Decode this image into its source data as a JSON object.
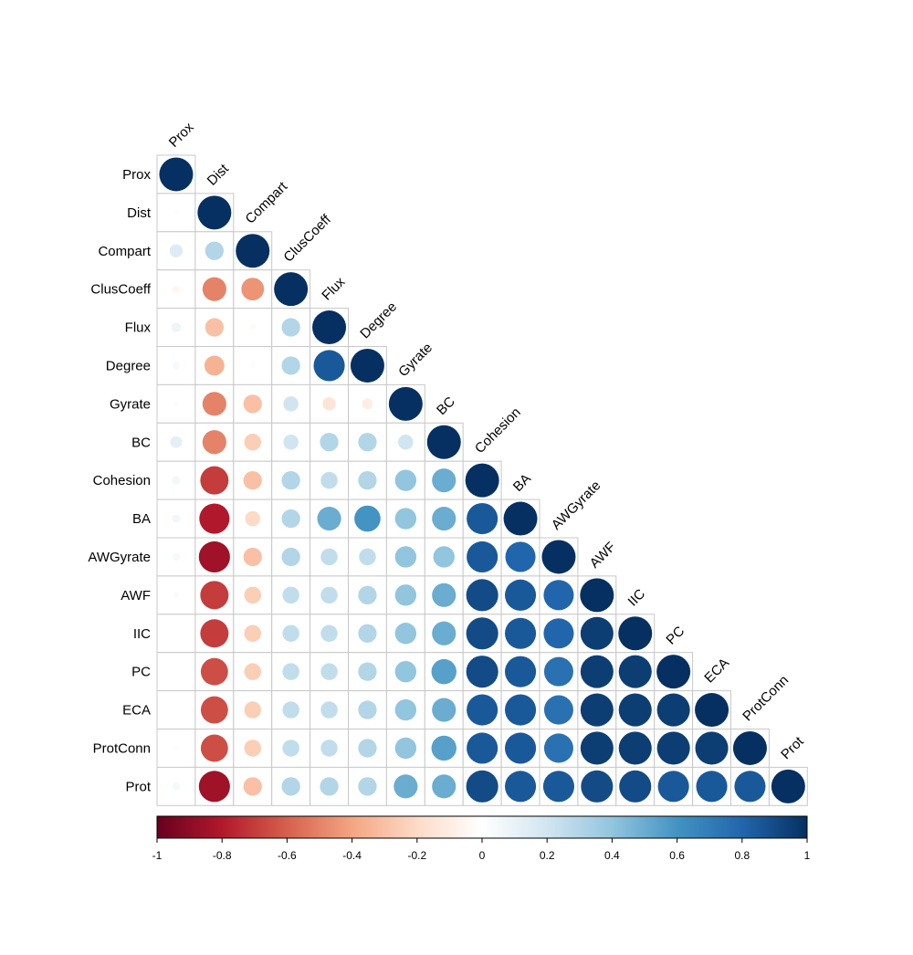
{
  "chart_data": {
    "type": "heatmap",
    "subtype": "correlation-circles-lower-triangle",
    "variables": [
      "Prox",
      "Dist",
      "Compart",
      "ClusCoeff",
      "Flux",
      "Degree",
      "Gyrate",
      "BC",
      "Cohesion",
      "BA",
      "AWGyrate",
      "AWF",
      "IIC",
      "PC",
      "ECA",
      "ProtConn",
      "Prot"
    ],
    "matrix": [
      [
        1.0
      ],
      [
        0.02,
        1.0
      ],
      [
        0.15,
        0.3,
        1.0
      ],
      [
        -0.05,
        -0.5,
        -0.45,
        1.0
      ],
      [
        0.08,
        -0.3,
        -0.03,
        0.3,
        1.0
      ],
      [
        0.05,
        -0.35,
        -0.02,
        0.3,
        0.85,
        1.0
      ],
      [
        0.02,
        -0.5,
        -0.3,
        0.2,
        -0.15,
        -0.1,
        1.0
      ],
      [
        0.12,
        -0.5,
        -0.25,
        0.2,
        0.3,
        0.3,
        0.2,
        1.0
      ],
      [
        0.06,
        -0.7,
        -0.3,
        0.3,
        0.25,
        0.3,
        0.4,
        0.5,
        1.0
      ],
      [
        0.06,
        -0.8,
        -0.2,
        0.3,
        0.5,
        0.6,
        0.4,
        0.5,
        0.85,
        1.0
      ],
      [
        0.05,
        -0.85,
        -0.3,
        0.3,
        0.25,
        0.25,
        0.4,
        0.4,
        0.85,
        0.8,
        1.0
      ],
      [
        0.03,
        -0.7,
        -0.25,
        0.25,
        0.25,
        0.3,
        0.4,
        0.5,
        0.9,
        0.85,
        0.8,
        1.0
      ],
      [
        0.0,
        -0.7,
        -0.25,
        0.25,
        0.25,
        0.3,
        0.4,
        0.5,
        0.9,
        0.85,
        0.8,
        0.95,
        1.0
      ],
      [
        0.0,
        -0.65,
        -0.25,
        0.25,
        0.25,
        0.3,
        0.4,
        0.55,
        0.9,
        0.85,
        0.75,
        0.95,
        0.95,
        1.0
      ],
      [
        0.0,
        -0.65,
        -0.25,
        0.25,
        0.25,
        0.3,
        0.4,
        0.5,
        0.85,
        0.85,
        0.75,
        0.95,
        0.95,
        0.95,
        1.0
      ],
      [
        0.02,
        -0.65,
        -0.25,
        0.25,
        0.25,
        0.3,
        0.4,
        0.55,
        0.85,
        0.85,
        0.75,
        0.95,
        0.95,
        0.95,
        0.95,
        1.0
      ],
      [
        0.05,
        -0.85,
        -0.3,
        0.3,
        0.3,
        0.3,
        0.5,
        0.5,
        0.9,
        0.85,
        0.85,
        0.9,
        0.9,
        0.85,
        0.85,
        0.85,
        1.0
      ]
    ],
    "colorbar": {
      "range": [
        -1,
        1
      ],
      "ticks": [
        "-1",
        "-0.8",
        "-0.6",
        "-0.4",
        "-0.2",
        "0",
        "0.2",
        "0.4",
        "0.6",
        "0.8",
        "1"
      ]
    },
    "colors": [
      "#67001F",
      "#B2182B",
      "#D6604D",
      "#F4A582",
      "#FDDBC7",
      "#FFFFFF",
      "#D1E5F0",
      "#92C5DE",
      "#4393C3",
      "#2166AC",
      "#053061"
    ],
    "grid": true,
    "legend_position": "bottom"
  }
}
